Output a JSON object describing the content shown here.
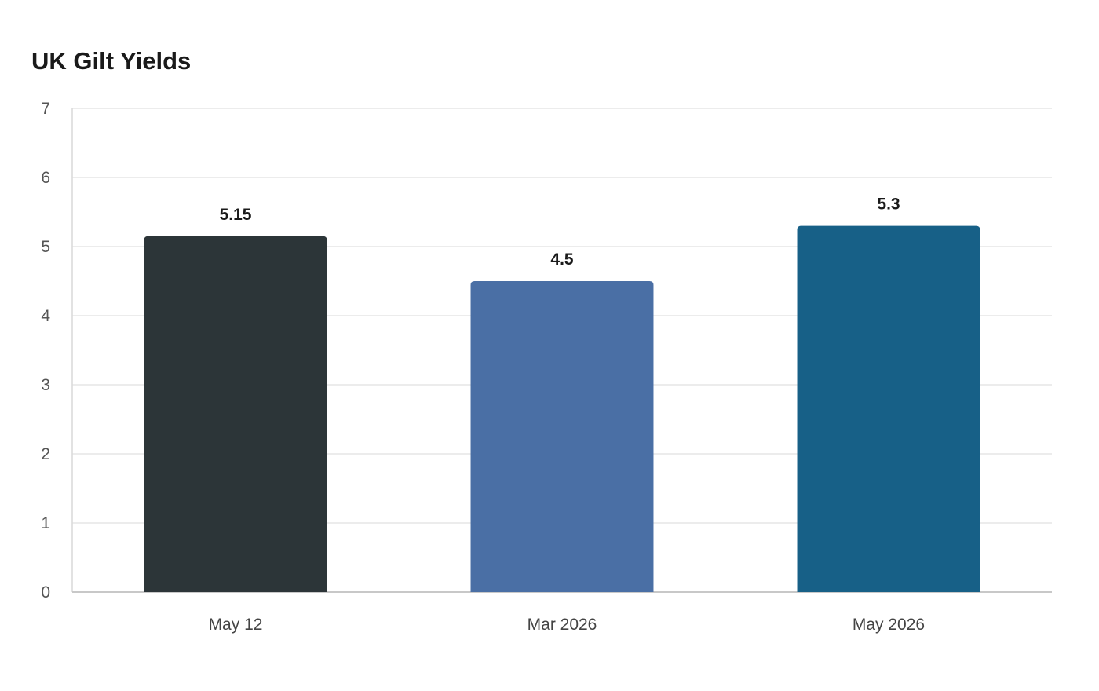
{
  "chart_data": {
    "type": "bar",
    "title": "UK Gilt Yields",
    "categories": [
      "May 12",
      "Mar 2026",
      "May 2026"
    ],
    "values": [
      5.15,
      4.5,
      5.3
    ],
    "value_labels": [
      "5.15",
      "4.5",
      "5.3"
    ],
    "colors": [
      "#2c3538",
      "#4a6fa5",
      "#176087"
    ],
    "ylim": [
      0,
      7
    ],
    "yticks": [
      0,
      1,
      2,
      3,
      4,
      5,
      6,
      7
    ],
    "grid": true,
    "legend": "none",
    "xlabel": "",
    "ylabel": ""
  }
}
